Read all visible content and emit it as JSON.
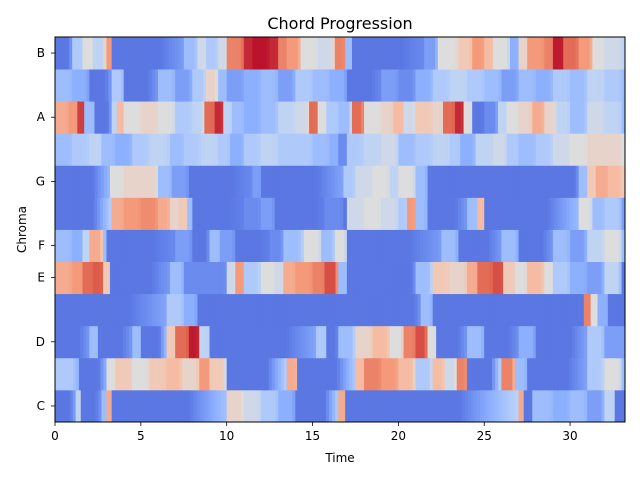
{
  "chart_data": {
    "type": "heatmap",
    "title": "Chord Progression",
    "xlabel": "Time",
    "ylabel": "Chroma",
    "xlim": [
      0,
      33.2
    ],
    "x_ticks": [
      0,
      5,
      10,
      15,
      20,
      25,
      30
    ],
    "x_tick_labels": [
      "0",
      "5",
      "10",
      "15",
      "20",
      "25",
      "30"
    ],
    "rows": [
      "C",
      "C#",
      "D",
      "D#",
      "E",
      "F",
      "F#",
      "G",
      "G#",
      "A",
      "A#",
      "B"
    ],
    "y_tick_labels": [
      {
        "row": "C",
        "label": "C"
      },
      {
        "row": "D",
        "label": "D"
      },
      {
        "row": "E",
        "label": "E"
      },
      {
        "row": "F",
        "label": "F"
      },
      {
        "row": "G",
        "label": "G"
      },
      {
        "row": "A",
        "label": "A"
      },
      {
        "row": "B",
        "label": "B"
      }
    ],
    "colormap": "coolwarm",
    "value_range": [
      0,
      1
    ],
    "grid": false,
    "segments": {
      "C": [
        [
          0,
          0.1
        ],
        [
          1.2,
          0.4
        ],
        [
          1.5,
          0.1
        ],
        [
          2.7,
          0.3
        ],
        [
          3.0,
          0.7
        ],
        [
          3.3,
          0.1
        ],
        [
          10.0,
          0.55
        ],
        [
          11.0,
          0.45
        ],
        [
          12.0,
          0.35
        ],
        [
          13.0,
          0.25
        ],
        [
          14.0,
          0.1
        ],
        [
          16.5,
          0.7
        ],
        [
          16.9,
          0.1
        ],
        [
          27.0,
          0.7
        ],
        [
          27.3,
          0.1
        ],
        [
          27.8,
          0.3
        ],
        [
          29.0,
          0.25
        ],
        [
          30.0,
          0.3
        ],
        [
          31.0,
          0.2
        ],
        [
          32.0,
          0.4
        ],
        [
          32.6,
          0.1
        ]
      ],
      "C#": [
        [
          0,
          0.35
        ],
        [
          1.4,
          0.1
        ],
        [
          3.0,
          0.5
        ],
        [
          3.5,
          0.6
        ],
        [
          4.5,
          0.5
        ],
        [
          5.5,
          0.6
        ],
        [
          6.5,
          0.65
        ],
        [
          7.4,
          0.55
        ],
        [
          8.4,
          0.75
        ],
        [
          9.0,
          0.6
        ],
        [
          10.0,
          0.1
        ],
        [
          13.5,
          0.7
        ],
        [
          14.1,
          0.1
        ],
        [
          17.5,
          0.65
        ],
        [
          18.0,
          0.8
        ],
        [
          19.0,
          0.75
        ],
        [
          20.0,
          0.65
        ],
        [
          21.0,
          0.35
        ],
        [
          22.0,
          0.65
        ],
        [
          22.7,
          0.45
        ],
        [
          23.4,
          0.8
        ],
        [
          24.0,
          0.1
        ],
        [
          26.0,
          0.8
        ],
        [
          26.8,
          0.3
        ],
        [
          27.5,
          0.1
        ],
        [
          31.0,
          0.35
        ],
        [
          32.0,
          0.5
        ],
        [
          33.0,
          0.3
        ]
      ],
      "D": [
        [
          0,
          0.1
        ],
        [
          2.0,
          0.3
        ],
        [
          2.5,
          0.1
        ],
        [
          4.5,
          0.3
        ],
        [
          5.0,
          0.1
        ],
        [
          6.5,
          0.6
        ],
        [
          7.0,
          0.85
        ],
        [
          7.8,
          0.97
        ],
        [
          8.4,
          0.4
        ],
        [
          9.0,
          0.1
        ],
        [
          10.0,
          0.1
        ],
        [
          15.2,
          0.35
        ],
        [
          15.8,
          0.1
        ],
        [
          16.5,
          0.3
        ],
        [
          17.5,
          0.55
        ],
        [
          18.5,
          0.65
        ],
        [
          19.5,
          0.5
        ],
        [
          20.3,
          0.8
        ],
        [
          21.0,
          0.9
        ],
        [
          21.7,
          0.5
        ],
        [
          22.2,
          0.1
        ],
        [
          24.0,
          0.3
        ],
        [
          25.0,
          0.1
        ],
        [
          27.0,
          0.25
        ],
        [
          28.0,
          0.1
        ],
        [
          31.0,
          0.35
        ],
        [
          32.0,
          0.2
        ]
      ],
      "D#": [
        [
          0,
          0.1
        ],
        [
          6.5,
          0.35
        ],
        [
          7.5,
          0.25
        ],
        [
          8.3,
          0.1
        ],
        [
          20.0,
          0.1
        ],
        [
          21.3,
          0.3
        ],
        [
          22.0,
          0.1
        ],
        [
          30.5,
          0.1
        ],
        [
          30.8,
          0.8
        ],
        [
          31.2,
          0.5
        ],
        [
          31.6,
          0.25
        ],
        [
          32.2,
          0.1
        ]
      ],
      "E": [
        [
          0,
          0.7
        ],
        [
          1.0,
          0.75
        ],
        [
          1.6,
          0.85
        ],
        [
          2.2,
          0.88
        ],
        [
          2.8,
          0.6
        ],
        [
          3.2,
          0.1
        ],
        [
          6.7,
          0.3
        ],
        [
          7.5,
          0.15
        ],
        [
          9.5,
          0.15
        ],
        [
          10.0,
          0.45
        ],
        [
          10.5,
          0.75
        ],
        [
          11.0,
          0.35
        ],
        [
          12.0,
          0.5
        ],
        [
          12.8,
          0.45
        ],
        [
          13.3,
          0.7
        ],
        [
          14.0,
          0.75
        ],
        [
          15.0,
          0.8
        ],
        [
          15.7,
          0.9
        ],
        [
          16.5,
          0.3
        ],
        [
          17.0,
          0.1
        ],
        [
          20.0,
          0.1
        ],
        [
          21.0,
          0.3
        ],
        [
          22.0,
          0.6
        ],
        [
          23.0,
          0.55
        ],
        [
          24.0,
          0.7
        ],
        [
          24.6,
          0.85
        ],
        [
          25.5,
          0.9
        ],
        [
          26.1,
          0.6
        ],
        [
          26.8,
          0.5
        ],
        [
          27.5,
          0.65
        ],
        [
          28.5,
          0.5
        ],
        [
          29.0,
          0.35
        ],
        [
          30.0,
          0.25
        ],
        [
          31.0,
          0.2
        ],
        [
          32.0,
          0.4
        ],
        [
          33.0,
          0.1
        ]
      ],
      "F": [
        [
          0,
          0.3
        ],
        [
          1.0,
          0.25
        ],
        [
          1.6,
          0.4
        ],
        [
          2.0,
          0.7
        ],
        [
          2.8,
          0.3
        ],
        [
          3.0,
          0.1
        ],
        [
          7.0,
          0.2
        ],
        [
          8.0,
          0.1
        ],
        [
          9.0,
          0.3
        ],
        [
          9.6,
          0.2
        ],
        [
          10.5,
          0.1
        ],
        [
          12.5,
          0.15
        ],
        [
          13.3,
          0.3
        ],
        [
          14.5,
          0.5
        ],
        [
          15.5,
          0.3
        ],
        [
          16.3,
          0.5
        ],
        [
          17.0,
          0.1
        ],
        [
          22.5,
          0.3
        ],
        [
          23.5,
          0.1
        ],
        [
          26.0,
          0.3
        ],
        [
          27.0,
          0.1
        ],
        [
          29.0,
          0.3
        ],
        [
          30.0,
          0.2
        ],
        [
          31.0,
          0.4
        ],
        [
          32.0,
          0.5
        ],
        [
          33.0,
          0.3
        ]
      ],
      "F#": [
        [
          0,
          0.1
        ],
        [
          3.3,
          0.7
        ],
        [
          4.0,
          0.75
        ],
        [
          5.0,
          0.78
        ],
        [
          6.0,
          0.7
        ],
        [
          6.7,
          0.55
        ],
        [
          7.2,
          0.6
        ],
        [
          7.7,
          0.3
        ],
        [
          8.0,
          0.1
        ],
        [
          11.0,
          0.15
        ],
        [
          12.0,
          0.2
        ],
        [
          12.8,
          0.1
        ],
        [
          14.0,
          0.1
        ],
        [
          15.7,
          0.15
        ],
        [
          16.8,
          0.1
        ],
        [
          17.0,
          0.45
        ],
        [
          18.0,
          0.5
        ],
        [
          19.0,
          0.45
        ],
        [
          20.0,
          0.35
        ],
        [
          20.5,
          0.75
        ],
        [
          21.0,
          0.3
        ],
        [
          21.7,
          0.1
        ],
        [
          24.0,
          0.3
        ],
        [
          24.6,
          0.65
        ],
        [
          25.0,
          0.1
        ],
        [
          30.5,
          0.5
        ],
        [
          31.3,
          0.3
        ],
        [
          32.0,
          0.35
        ],
        [
          33.0,
          0.2
        ]
      ],
      "G": [
        [
          0,
          0.1
        ],
        [
          3.2,
          0.5
        ],
        [
          4.0,
          0.55
        ],
        [
          5.0,
          0.55
        ],
        [
          6.0,
          0.3
        ],
        [
          6.8,
          0.2
        ],
        [
          7.8,
          0.1
        ],
        [
          11.5,
          0.2
        ],
        [
          12.0,
          0.1
        ],
        [
          16.8,
          0.35
        ],
        [
          17.5,
          0.45
        ],
        [
          18.5,
          0.5
        ],
        [
          19.5,
          0.4
        ],
        [
          20.0,
          0.5
        ],
        [
          21.0,
          0.3
        ],
        [
          21.7,
          0.1
        ],
        [
          29.5,
          0.1
        ],
        [
          30.5,
          0.3
        ],
        [
          31.0,
          0.6
        ],
        [
          31.5,
          0.7
        ],
        [
          32.2,
          0.65
        ],
        [
          33.0,
          0.6
        ]
      ],
      "G#": [
        [
          0,
          0.3
        ],
        [
          1.0,
          0.35
        ],
        [
          2.0,
          0.4
        ],
        [
          2.7,
          0.3
        ],
        [
          3.5,
          0.25
        ],
        [
          4.5,
          0.35
        ],
        [
          5.5,
          0.4
        ],
        [
          6.7,
          0.3
        ],
        [
          7.5,
          0.35
        ],
        [
          8.5,
          0.4
        ],
        [
          9.5,
          0.35
        ],
        [
          10.2,
          0.25
        ],
        [
          11.0,
          0.35
        ],
        [
          12.0,
          0.4
        ],
        [
          13.0,
          0.35
        ],
        [
          14.0,
          0.35
        ],
        [
          15.0,
          0.3
        ],
        [
          16.0,
          0.25
        ],
        [
          16.5,
          0.15
        ],
        [
          17.0,
          0.35
        ],
        [
          18.0,
          0.4
        ],
        [
          19.0,
          0.45
        ],
        [
          20.0,
          0.3
        ],
        [
          21.0,
          0.35
        ],
        [
          22.0,
          0.4
        ],
        [
          23.0,
          0.35
        ],
        [
          23.6,
          0.25
        ],
        [
          24.5,
          0.4
        ],
        [
          25.5,
          0.45
        ],
        [
          26.3,
          0.35
        ],
        [
          27.0,
          0.3
        ],
        [
          28.0,
          0.35
        ],
        [
          29.0,
          0.45
        ],
        [
          30.0,
          0.5
        ],
        [
          31.0,
          0.55
        ],
        [
          32.0,
          0.55
        ],
        [
          33.0,
          0.5
        ]
      ],
      "A": [
        [
          0,
          0.7
        ],
        [
          0.8,
          0.75
        ],
        [
          1.3,
          0.92
        ],
        [
          1.7,
          0.3
        ],
        [
          2.3,
          0.1
        ],
        [
          3.3,
          0.4
        ],
        [
          3.6,
          0.65
        ],
        [
          4.0,
          0.5
        ],
        [
          5.0,
          0.55
        ],
        [
          6.0,
          0.5
        ],
        [
          7.0,
          0.35
        ],
        [
          8.0,
          0.4
        ],
        [
          8.7,
          0.85
        ],
        [
          9.3,
          0.95
        ],
        [
          9.8,
          0.4
        ],
        [
          10.3,
          0.3
        ],
        [
          11.0,
          0.25
        ],
        [
          12.0,
          0.3
        ],
        [
          13.0,
          0.4
        ],
        [
          14.0,
          0.45
        ],
        [
          14.8,
          0.85
        ],
        [
          15.3,
          0.5
        ],
        [
          15.8,
          0.35
        ],
        [
          16.5,
          0.3
        ],
        [
          17.3,
          0.85
        ],
        [
          18.0,
          0.5
        ],
        [
          19.0,
          0.55
        ],
        [
          19.7,
          0.65
        ],
        [
          20.3,
          0.45
        ],
        [
          21.0,
          0.6
        ],
        [
          22.0,
          0.55
        ],
        [
          22.6,
          0.85
        ],
        [
          23.3,
          0.95
        ],
        [
          23.8,
          0.5
        ],
        [
          24.3,
          0.1
        ],
        [
          25.0,
          0.15
        ],
        [
          25.8,
          0.4
        ],
        [
          26.3,
          0.5
        ],
        [
          27.0,
          0.55
        ],
        [
          27.8,
          0.7
        ],
        [
          28.5,
          0.55
        ],
        [
          29.2,
          0.4
        ],
        [
          30.0,
          0.3
        ],
        [
          31.0,
          0.45
        ],
        [
          32.0,
          0.4
        ],
        [
          33.0,
          0.3
        ]
      ],
      "A#": [
        [
          0,
          0.3
        ],
        [
          1.0,
          0.25
        ],
        [
          2.0,
          0.1
        ],
        [
          3.3,
          0.35
        ],
        [
          4.0,
          0.1
        ],
        [
          6.0,
          0.3
        ],
        [
          7.0,
          0.2
        ],
        [
          8.0,
          0.35
        ],
        [
          8.8,
          0.55
        ],
        [
          9.5,
          0.3
        ],
        [
          10.0,
          0.2
        ],
        [
          11.0,
          0.25
        ],
        [
          12.0,
          0.3
        ],
        [
          13.0,
          0.2
        ],
        [
          14.0,
          0.35
        ],
        [
          15.0,
          0.3
        ],
        [
          16.0,
          0.25
        ],
        [
          17.0,
          0.1
        ],
        [
          19.0,
          0.2
        ],
        [
          20.0,
          0.15
        ],
        [
          21.0,
          0.25
        ],
        [
          22.0,
          0.35
        ],
        [
          23.0,
          0.4
        ],
        [
          24.0,
          0.35
        ],
        [
          25.0,
          0.3
        ],
        [
          26.0,
          0.2
        ],
        [
          27.0,
          0.3
        ],
        [
          28.0,
          0.25
        ],
        [
          29.0,
          0.35
        ],
        [
          30.0,
          0.3
        ],
        [
          31.0,
          0.4
        ],
        [
          32.0,
          0.35
        ],
        [
          33.0,
          0.3
        ]
      ],
      "B": [
        [
          0,
          0.1
        ],
        [
          1.0,
          0.35
        ],
        [
          1.6,
          0.5
        ],
        [
          2.2,
          0.4
        ],
        [
          2.8,
          0.55
        ],
        [
          3.0,
          0.75
        ],
        [
          3.3,
          0.1
        ],
        [
          7.5,
          0.3
        ],
        [
          8.3,
          0.45
        ],
        [
          8.8,
          0.35
        ],
        [
          9.5,
          0.45
        ],
        [
          10.0,
          0.8
        ],
        [
          11.0,
          0.95
        ],
        [
          11.5,
          0.98
        ],
        [
          12.5,
          0.95
        ],
        [
          13.0,
          0.8
        ],
        [
          13.5,
          0.75
        ],
        [
          14.3,
          0.5
        ],
        [
          15.3,
          0.45
        ],
        [
          16.3,
          0.8
        ],
        [
          16.9,
          0.3
        ],
        [
          17.3,
          0.1
        ],
        [
          21.5,
          0.2
        ],
        [
          22.3,
          0.5
        ],
        [
          23.5,
          0.6
        ],
        [
          24.3,
          0.75
        ],
        [
          25.0,
          0.65
        ],
        [
          25.5,
          0.5
        ],
        [
          26.5,
          0.25
        ],
        [
          27.0,
          0.55
        ],
        [
          27.5,
          0.75
        ],
        [
          28.5,
          0.8
        ],
        [
          29.0,
          0.97
        ],
        [
          29.6,
          0.85
        ],
        [
          30.5,
          0.75
        ],
        [
          31.3,
          0.5
        ],
        [
          32.0,
          0.45
        ],
        [
          33.0,
          0.4
        ]
      ]
    }
  }
}
